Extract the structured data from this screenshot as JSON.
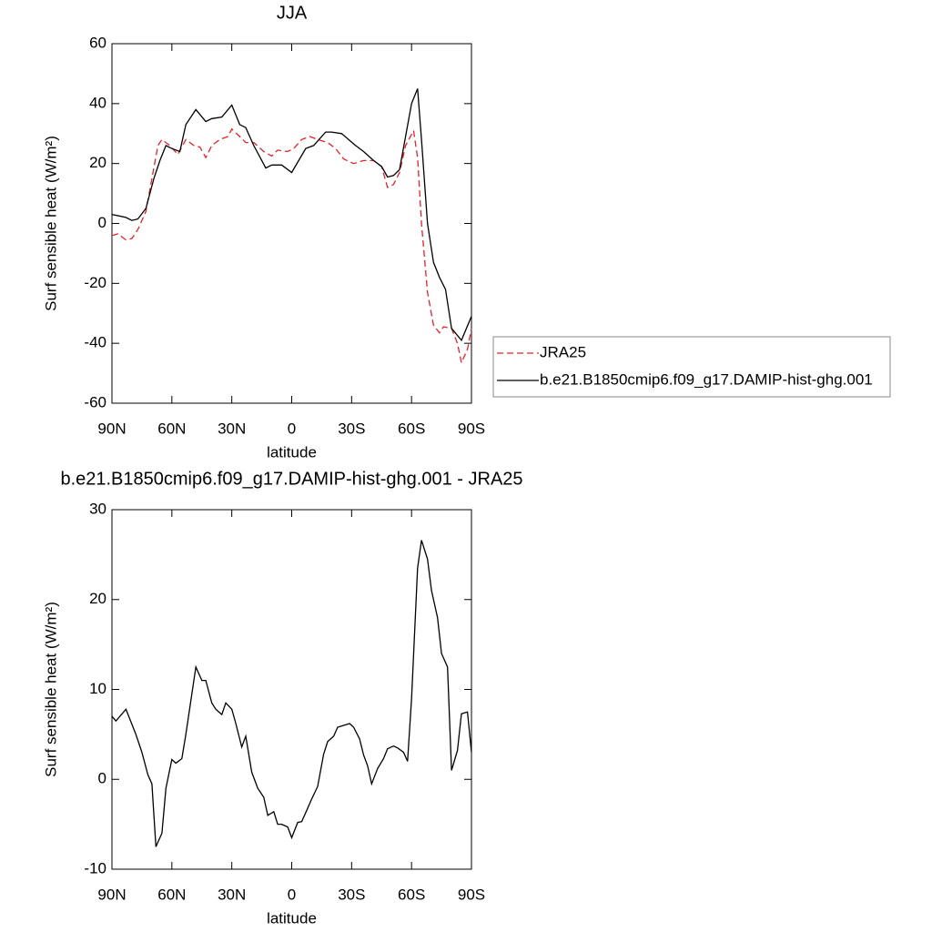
{
  "chart_data": [
    {
      "type": "line",
      "title": "JJA",
      "xlabel": "latitude",
      "ylabel": "Surf sensible heat (W/m²)",
      "xlim": [
        90,
        -90
      ],
      "ylim": [
        -60,
        60
      ],
      "xticks": [
        {
          "value": 90,
          "label": "90N"
        },
        {
          "value": 60,
          "label": "60N"
        },
        {
          "value": 30,
          "label": "30N"
        },
        0,
        {
          "value": -30,
          "label": "30S"
        },
        {
          "value": -60,
          "label": "60S"
        },
        {
          "value": -90,
          "label": "90S"
        }
      ],
      "yticks": [
        60,
        40,
        20,
        0,
        -20,
        -40,
        -60
      ],
      "legend_position": "right",
      "series": [
        {
          "name": "JRA25",
          "color": "#e8202a",
          "dash": true,
          "x": [
            90,
            87,
            83,
            80,
            77,
            73,
            70,
            67,
            65,
            61,
            57,
            53,
            49,
            46,
            43,
            40,
            36,
            32,
            30,
            26,
            23,
            19,
            14,
            10,
            7,
            2,
            -1,
            -5,
            -9,
            -13,
            -18,
            -22,
            -26,
            -31,
            -36,
            -41,
            -45,
            -48,
            -51,
            -54,
            -57,
            -61,
            -63,
            -65,
            -68,
            -71,
            -74,
            -76,
            -80,
            -83,
            -85,
            -88,
            -90
          ],
          "values": [
            -4,
            -3.5,
            -5.5,
            -5,
            -2,
            4,
            15,
            26,
            28,
            26,
            23,
            28,
            26,
            25.5,
            22,
            26,
            28,
            29,
            31.5,
            29,
            27,
            27,
            24,
            22.5,
            24.5,
            24,
            25,
            28,
            29,
            28,
            27,
            25,
            21.5,
            20,
            21,
            21,
            19,
            12,
            13,
            17,
            26,
            31,
            22,
            0,
            -23,
            -34,
            -36.5,
            -34.5,
            -35,
            -40,
            -46.5,
            -42,
            -35
          ]
        },
        {
          "name": "b.e21.B1850cmip6.f09_g17.DAMIP-hist-ghg.001",
          "color": "#000000",
          "dash": false,
          "x": [
            90,
            83,
            80,
            77,
            73,
            69,
            66,
            63,
            60,
            56,
            53,
            48,
            43,
            40,
            35,
            30,
            26,
            23,
            19,
            13,
            10,
            5,
            0,
            -7,
            -11,
            -17,
            -20,
            -25,
            -32,
            -36,
            -41,
            -45,
            -48,
            -51,
            -54,
            -57,
            -60,
            -63,
            -65,
            -68,
            -71,
            -74,
            -77,
            -80,
            -85,
            -90
          ],
          "values": [
            3,
            2,
            1,
            1.5,
            5,
            15,
            21,
            26,
            25,
            24,
            33,
            38,
            34,
            35,
            35.5,
            39.5,
            33,
            32,
            26,
            18.5,
            19.5,
            19.5,
            17,
            25,
            26,
            30.5,
            30.5,
            30,
            26,
            24,
            21,
            19,
            15.5,
            16,
            18,
            29,
            40,
            45,
            28,
            0,
            -13,
            -18,
            -22,
            -35,
            -39,
            -31
          ]
        }
      ]
    },
    {
      "type": "line",
      "title": "b.e21.B1850cmip6.f09_g17.DAMIP-hist-ghg.001 - JRA25",
      "xlabel": "latitude",
      "ylabel": "Surf sensible heat (W/m²)",
      "xlim": [
        90,
        -90
      ],
      "ylim": [
        -10,
        30
      ],
      "xticks": [
        {
          "value": 90,
          "label": "90N"
        },
        {
          "value": 60,
          "label": "60N"
        },
        {
          "value": 30,
          "label": "30N"
        },
        0,
        {
          "value": -30,
          "label": "30S"
        },
        {
          "value": -60,
          "label": "60S"
        },
        {
          "value": -90,
          "label": "90S"
        }
      ],
      "yticks": [
        30,
        20,
        10,
        0,
        -10
      ],
      "series": [
        {
          "color": "#000000",
          "dash": false,
          "x": [
            90,
            88,
            83,
            78,
            75,
            72,
            70,
            68,
            65,
            63,
            60,
            58,
            55,
            53,
            50,
            48,
            45,
            43,
            40,
            38,
            35,
            33,
            30,
            28,
            25,
            23,
            20,
            17,
            14,
            12,
            9,
            7,
            5,
            2,
            0,
            -3,
            -5,
            -8,
            -10,
            -13,
            -16,
            -18,
            -21,
            -23,
            -26,
            -29,
            -31,
            -34,
            -36,
            -38,
            -40,
            -43,
            -46,
            -48,
            -51,
            -53,
            -56,
            -58,
            -60,
            -63,
            -65,
            -68,
            -70,
            -73,
            -75,
            -78,
            -80,
            -83,
            -85,
            -88,
            -90
          ],
          "values": [
            7,
            6.5,
            7.8,
            5,
            3,
            0.5,
            -0.5,
            -7.5,
            -6,
            -1,
            2.2,
            1.8,
            2.3,
            5,
            9.5,
            12.5,
            11,
            11,
            8.5,
            7.8,
            7.2,
            8.5,
            7.8,
            6.2,
            3.6,
            4.8,
            0.8,
            -1,
            -2,
            -4,
            -3.6,
            -5,
            -5,
            -5.3,
            -6.5,
            -4.8,
            -4.7,
            -3.2,
            -2.2,
            -0.8,
            2.8,
            4.2,
            4.8,
            5.8,
            6,
            6.2,
            5.8,
            4.5,
            2.7,
            1.5,
            -0.5,
            1.2,
            2.3,
            3.4,
            3.7,
            3.5,
            3,
            2,
            9,
            23.5,
            26.6,
            24.5,
            21,
            18,
            14,
            12.5,
            1,
            3.2,
            7.3,
            7.5,
            3
          ]
        }
      ]
    }
  ]
}
